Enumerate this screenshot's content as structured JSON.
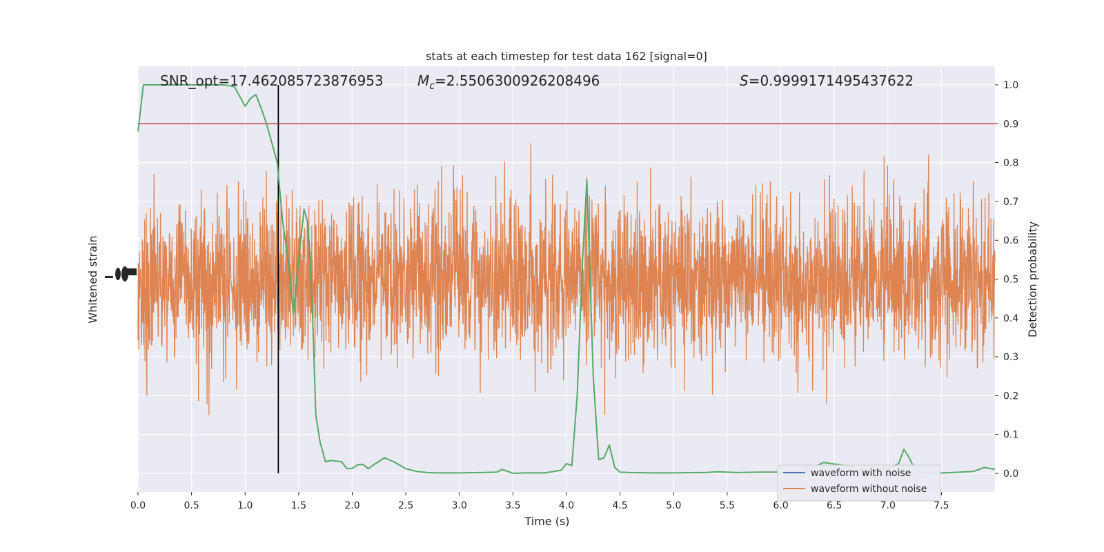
{
  "chart_data": {
    "type": "line",
    "title": "stats at each timestep for test data 162 [signal=0]",
    "xlabel": "Time (s)",
    "ylabel_left": "Whitened strain",
    "ylabel_right": "Detection probability",
    "xlim": [
      0.0,
      8.0
    ],
    "xticks": [
      "0.0",
      "0.5",
      "1.0",
      "1.5",
      "2.0",
      "2.5",
      "3.0",
      "3.5",
      "4.0",
      "4.5",
      "5.0",
      "5.5",
      "6.0",
      "6.5",
      "7.0",
      "7.5"
    ],
    "ylim_right": [
      -0.048,
      1.048
    ],
    "yticks_right": [
      "0.0",
      "0.1",
      "0.2",
      "0.3",
      "0.4",
      "0.5",
      "0.6",
      "0.7",
      "0.8",
      "0.9",
      "1.0"
    ],
    "grid": true,
    "legend_position": "lower-right",
    "threshold": 0.9,
    "vline_x": 1.31,
    "annotations": {
      "snr": "SNR_opt=17.462085723876953",
      "mc_symbol": "M",
      "mc_sub": "c",
      "mc_value": "=2.5506300926208496",
      "s_symbol": "S",
      "s_value": "=0.9999171495437622"
    },
    "series": [
      {
        "name": "waveform with noise",
        "color": "#4c72b0"
      },
      {
        "name": "waveform without noise",
        "color": "#dd8452"
      },
      {
        "color": "#55a868",
        "x": [
          0.0,
          0.05,
          0.1,
          0.15,
          0.2,
          0.3,
          0.4,
          0.5,
          0.6,
          0.7,
          0.8,
          0.85,
          0.9,
          0.95,
          1.0,
          1.05,
          1.1,
          1.15,
          1.2,
          1.25,
          1.3,
          1.35,
          1.4,
          1.45,
          1.5,
          1.55,
          1.58,
          1.6,
          1.63,
          1.66,
          1.7,
          1.75,
          1.8,
          1.9,
          1.95,
          2.0,
          2.05,
          2.1,
          2.15,
          2.2,
          2.3,
          2.4,
          2.5,
          2.6,
          2.7,
          2.8,
          3.0,
          3.2,
          3.35,
          3.4,
          3.5,
          3.6,
          3.8,
          3.95,
          4.0,
          4.05,
          4.1,
          4.15,
          4.19,
          4.25,
          4.3,
          4.35,
          4.4,
          4.45,
          4.5,
          4.6,
          4.8,
          5.0,
          5.2,
          5.3,
          5.4,
          5.6,
          5.8,
          6.0,
          6.2,
          6.4,
          6.6,
          6.8,
          7.0,
          7.1,
          7.15,
          7.2,
          7.25,
          7.3,
          7.4,
          7.6,
          7.8,
          7.9,
          8.0
        ],
        "values": [
          0.88,
          1.0,
          1.0,
          1.0,
          1.0,
          1.0,
          1.0,
          1.0,
          1.0,
          1.0,
          1.0,
          0.998,
          0.995,
          0.97,
          0.945,
          0.965,
          0.975,
          0.94,
          0.9,
          0.85,
          0.8,
          0.65,
          0.55,
          0.41,
          0.55,
          0.68,
          0.65,
          0.59,
          0.4,
          0.15,
          0.08,
          0.03,
          0.033,
          0.03,
          0.012,
          0.013,
          0.022,
          0.023,
          0.012,
          0.022,
          0.04,
          0.028,
          0.012,
          0.005,
          0.002,
          0.001,
          0.001,
          0.002,
          0.003,
          0.01,
          0.0,
          0.001,
          0.001,
          0.008,
          0.025,
          0.02,
          0.2,
          0.55,
          0.755,
          0.25,
          0.035,
          0.04,
          0.073,
          0.015,
          0.003,
          0.002,
          0.001,
          0.001,
          0.002,
          0.002,
          0.004,
          0.002,
          0.003,
          0.003,
          0.002,
          0.028,
          0.02,
          0.005,
          0.012,
          0.025,
          0.062,
          0.04,
          0.01,
          0.002,
          0.0,
          0.002,
          0.005,
          0.015,
          0.01
        ]
      }
    ]
  }
}
